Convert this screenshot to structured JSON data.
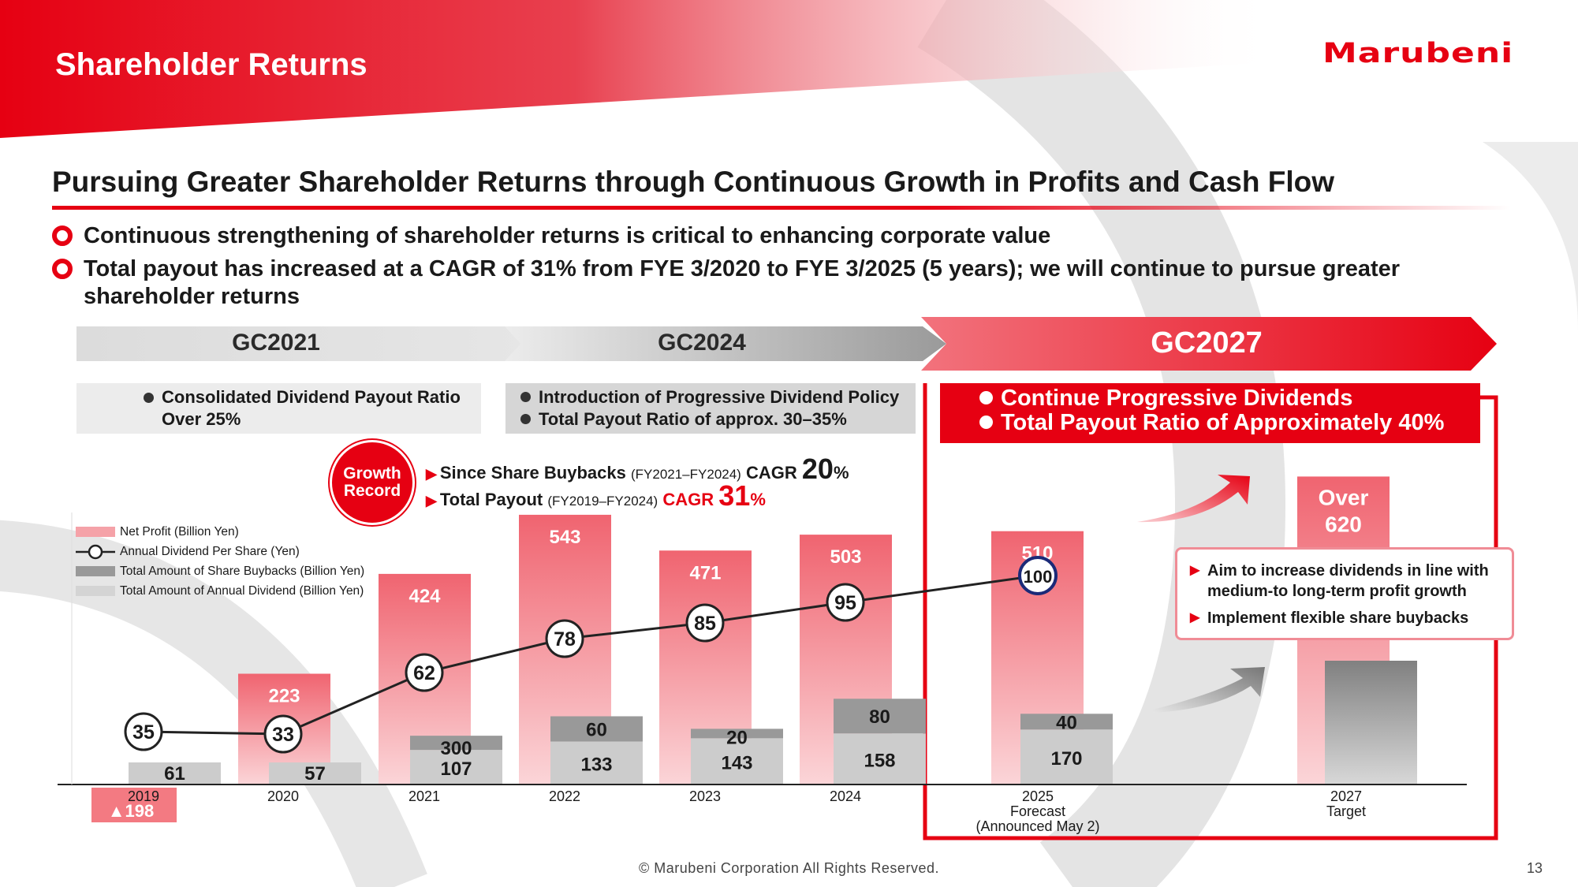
{
  "header": {
    "title": "Shareholder Returns",
    "logo_text": "Marubeni"
  },
  "subtitle": "Pursuing Greater Shareholder Returns through Continuous Growth in Profits and Cash Flow",
  "bullets": [
    "Continuous strengthening of shareholder returns is critical to enhancing corporate value",
    "Total payout has increased at a CAGR of 31% from FYE 3/2020 to FYE 3/2025 (5 years); we will continue to pursue greater shareholder returns"
  ],
  "phases": [
    {
      "label": "GC2021",
      "policy": [
        "Consolidated Dividend Payout Ratio Over 25%"
      ]
    },
    {
      "label": "GC2024",
      "policy": [
        "Introduction of Progressive Dividend Policy",
        "Total Payout Ratio of approx. 30–35%"
      ]
    },
    {
      "label": "GC2027",
      "policy": [
        "Continue Progressive Dividends",
        "Total Payout Ratio of Approximately 40%"
      ]
    }
  ],
  "growth_record": {
    "badge_line1": "Growth",
    "badge_line2": "Record",
    "line1": {
      "label": "Since Share Buybacks",
      "period": "(FY2021–FY2024)",
      "cagr_label": "CAGR",
      "value": "20",
      "unit": "%"
    },
    "line2": {
      "label": "Total Payout",
      "period": "(FY2019–FY2024)",
      "cagr_label": "CAGR",
      "value": "31",
      "unit": "%"
    }
  },
  "note_box": [
    "Aim to increase dividends in line with medium-to long-term profit growth",
    "Implement flexible share buybacks"
  ],
  "footer": {
    "copyright": "© Marubeni Corporation All Rights Reserved.",
    "page_number": "13"
  },
  "colors": {
    "brand_red": "#e60012",
    "net_profit": "#f37a82",
    "buyback": "#999999",
    "dividend": "#cccccc"
  },
  "chart_data": {
    "type": "bar",
    "categories": [
      "2019",
      "2020",
      "2021",
      "2022",
      "2023",
      "2024",
      "2025",
      "2027"
    ],
    "category_sublabels": [
      "",
      "",
      "",
      "",
      "",
      "",
      "Forecast\n(Announced May 2)",
      "Target"
    ],
    "series": [
      {
        "name": "Net Profit (Billion Yen)",
        "values": [
          -198,
          223,
          424,
          543,
          471,
          503,
          510,
          620
        ],
        "labels": [
          "▲198",
          "223",
          "424",
          "543",
          "471",
          "503",
          "510",
          "Over\n620"
        ]
      },
      {
        "name": "Annual Dividend Per Share (Yen)",
        "type": "line",
        "values": [
          35,
          33,
          62,
          78,
          85,
          95,
          100,
          null
        ],
        "labels": [
          "35",
          "33",
          "62",
          "78",
          "85",
          "95",
          "100",
          ""
        ]
      },
      {
        "name": "Total Amount of Share Buybacks (Billion Yen)",
        "values": [
          0,
          0,
          300,
          60,
          20,
          80,
          40,
          null
        ],
        "labels": [
          "",
          "",
          "300",
          "60",
          "20",
          "80",
          "40",
          ""
        ]
      },
      {
        "name": "Total Amount of Annual Dividend (Billion Yen)",
        "values": [
          61,
          57,
          107,
          133,
          143,
          158,
          170,
          null
        ],
        "labels": [
          "61",
          "57",
          "107",
          "133",
          "143",
          "158",
          "170",
          ""
        ]
      }
    ],
    "legend_position": "left"
  }
}
